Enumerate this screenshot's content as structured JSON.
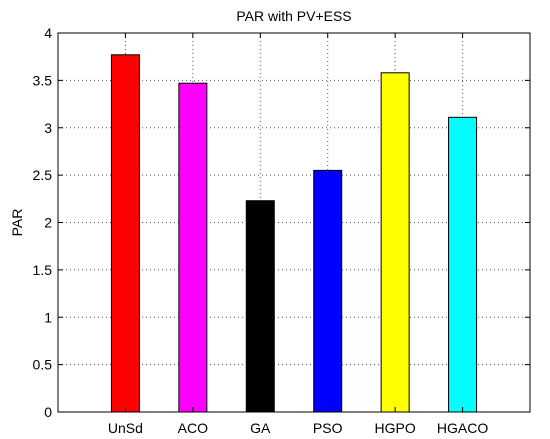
{
  "chart_data": {
    "type": "bar",
    "title": "PAR with PV+ESS",
    "xlabel": "",
    "ylabel": "PAR",
    "categories": [
      "UnSd",
      "ACO",
      "GA",
      "PSO",
      "HGPO",
      "HGACO"
    ],
    "values": [
      3.77,
      3.47,
      2.23,
      2.55,
      3.58,
      3.11
    ],
    "colors": [
      "#ff0000",
      "#ff00ff",
      "#000000",
      "#0000ff",
      "#ffff00",
      "#00ffff"
    ],
    "ylim": [
      0,
      4
    ],
    "yticks": [
      0,
      0.5,
      1,
      1.5,
      2,
      2.5,
      3,
      3.5,
      4
    ],
    "ytick_labels": [
      "0",
      "0.5",
      "1",
      "1.5",
      "2",
      "2.5",
      "3",
      "3.5",
      "4"
    ],
    "grid": true,
    "legend": "none"
  }
}
